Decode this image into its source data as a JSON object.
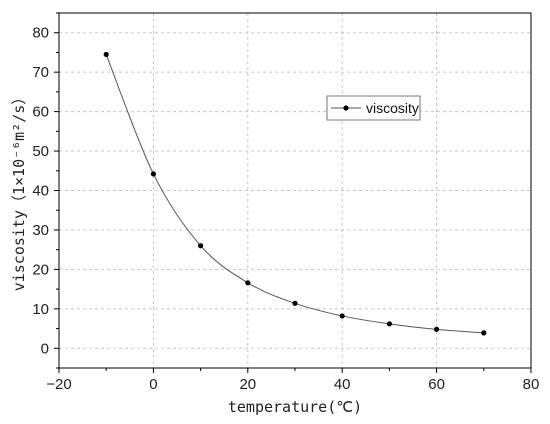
{
  "chart_data": {
    "type": "line",
    "title": "",
    "xlabel": "temperature(℃)",
    "ylabel": "viscosity（1×10⁻⁶m²/s）",
    "xlim": [
      -20,
      80
    ],
    "ylim": [
      -5,
      85
    ],
    "xticks": [
      -20,
      0,
      20,
      40,
      60,
      80
    ],
    "yticks": [
      0,
      10,
      20,
      30,
      40,
      50,
      60,
      70,
      80
    ],
    "grid": true,
    "legend_position": "top-right",
    "series": [
      {
        "name": "viscosity",
        "color": "#555555",
        "marker_color": "#000000",
        "x": [
          -10,
          0,
          10,
          20,
          30,
          40,
          50,
          60,
          70
        ],
        "y": [
          74.5,
          44.2,
          26.0,
          16.6,
          11.4,
          8.2,
          6.2,
          4.8,
          3.9
        ]
      }
    ]
  }
}
